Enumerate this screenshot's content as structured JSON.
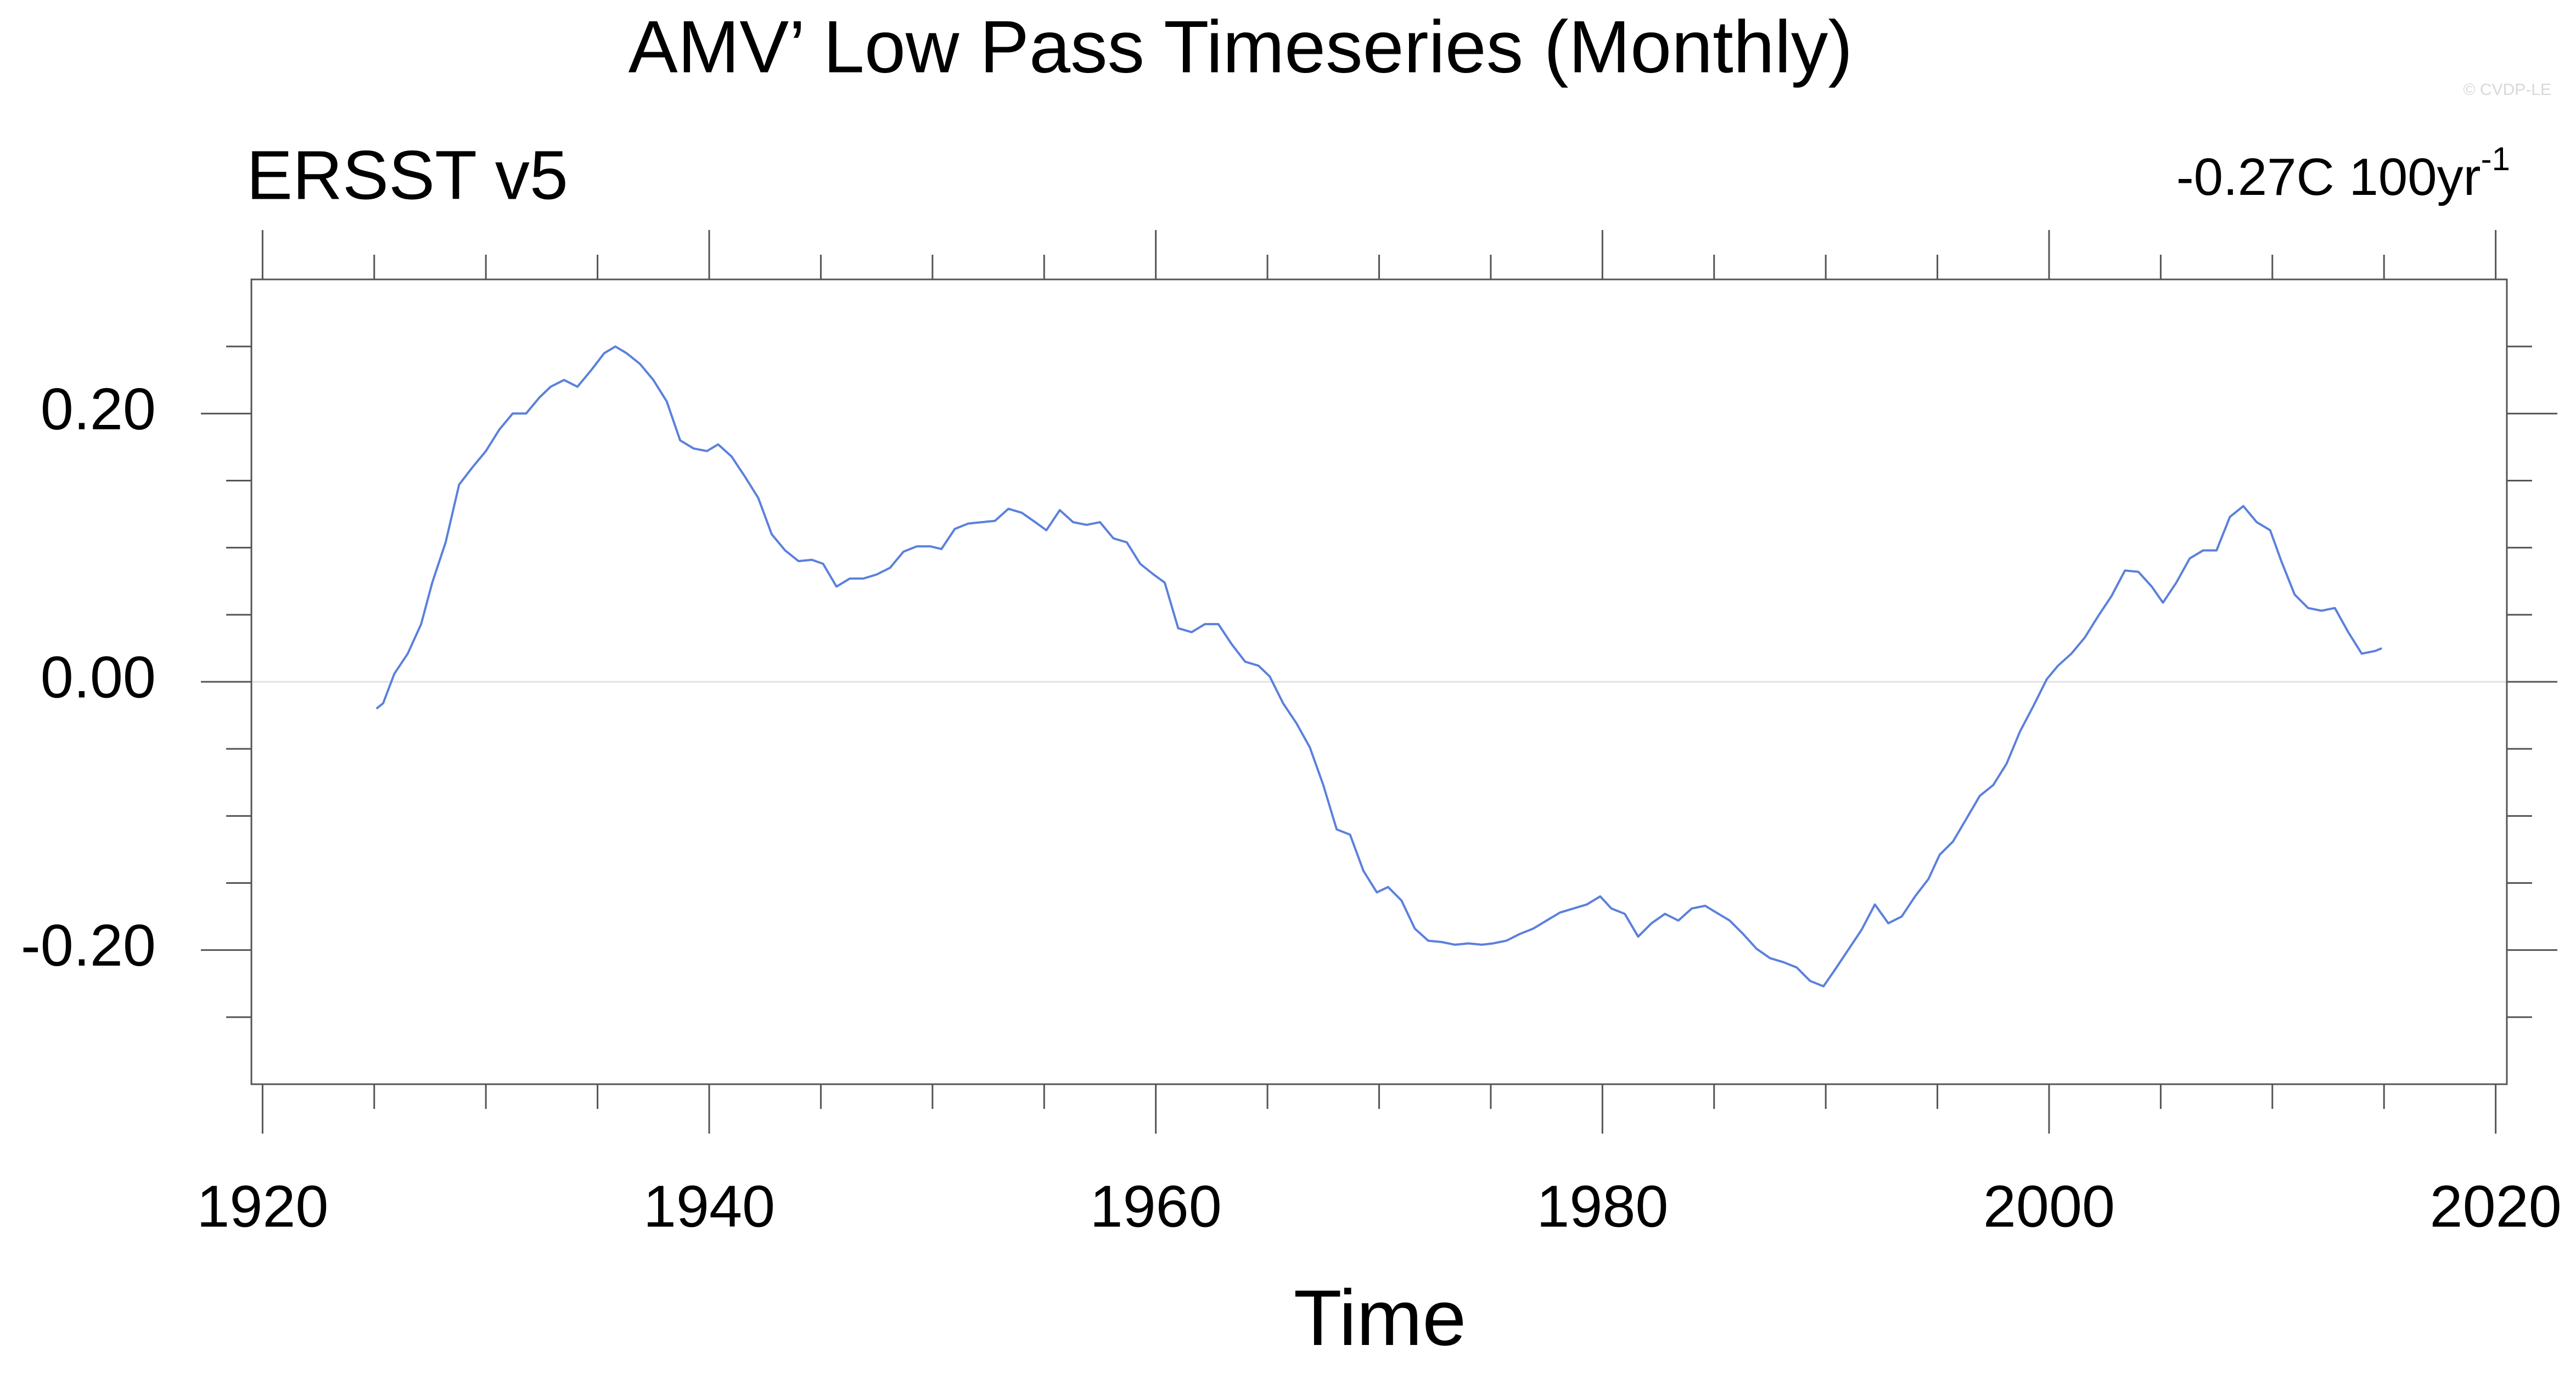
{
  "chart_data": {
    "type": "line",
    "title": "AMV’ Low Pass Timeseries (Monthly)",
    "subtitle": "ERSST v5",
    "trend": "-0.27C 100yr",
    "trend_superscript": "-1",
    "watermark": "© CVDP-LE",
    "x_label": "Time",
    "xlim": [
      1919.5,
      2020.5
    ],
    "xticks": [
      1920,
      1940,
      1960,
      1980,
      2000,
      2020
    ],
    "xminorticks": [
      1925,
      1930,
      1935,
      1945,
      1950,
      1955,
      1965,
      1970,
      1975,
      1985,
      1990,
      1995,
      2005,
      2010,
      2015
    ],
    "ylim": [
      -0.3,
      0.3
    ],
    "yticks": [
      {
        "value": 0.2,
        "label": "0.20"
      },
      {
        "value": 0,
        "label": "0.00"
      },
      {
        "value": -0.2,
        "label": "-0.20"
      }
    ],
    "yminorticks": [
      0.25,
      0.15,
      0.1,
      0.05,
      -0.05,
      -0.1,
      -0.15,
      -0.25
    ],
    "zero_line": true,
    "x": [
      1925.1,
      1925.4,
      1925.9,
      1926.5,
      1927.1,
      1927.6,
      1928.2,
      1928.8,
      1929.4,
      1930.0,
      1930.6,
      1931.2,
      1931.8,
      1932.4,
      1932.9,
      1933.5,
      1934.1,
      1934.7,
      1935.3,
      1935.8,
      1936.3,
      1936.9,
      1937.5,
      1938.1,
      1938.7,
      1939.3,
      1939.9,
      1940.4,
      1941.0,
      1941.6,
      1942.2,
      1942.8,
      1943.4,
      1944.0,
      1944.6,
      1945.1,
      1945.7,
      1946.3,
      1946.9,
      1947.5,
      1948.1,
      1948.7,
      1949.3,
      1949.9,
      1950.4,
      1951.0,
      1951.6,
      1952.2,
      1952.8,
      1953.4,
      1954.0,
      1954.6,
      1955.1,
      1955.7,
      1956.3,
      1956.9,
      1957.5,
      1958.1,
      1958.7,
      1959.3,
      1959.9,
      1960.4,
      1961.0,
      1961.6,
      1962.2,
      1962.8,
      1963.4,
      1964.0,
      1964.6,
      1965.1,
      1965.7,
      1966.3,
      1966.9,
      1967.5,
      1968.1,
      1968.7,
      1969.3,
      1969.9,
      1970.4,
      1971.0,
      1971.6,
      1972.2,
      1972.8,
      1973.4,
      1974.0,
      1974.6,
      1975.1,
      1975.7,
      1976.3,
      1976.9,
      1977.5,
      1978.1,
      1978.7,
      1979.3,
      1979.9,
      1980.4,
      1981.0,
      1981.6,
      1982.2,
      1982.8,
      1983.4,
      1984.0,
      1984.6,
      1985.1,
      1985.7,
      1986.3,
      1986.9,
      1987.5,
      1988.1,
      1988.7,
      1989.3,
      1989.9,
      1990.4,
      1991.0,
      1991.6,
      1992.2,
      1992.8,
      1993.4,
      1994.0,
      1994.6,
      1995.1,
      1995.7,
      1996.3,
      1996.9,
      1997.5,
      1998.1,
      1998.7,
      1999.3,
      1999.9,
      2000.4,
      2001.0,
      2001.6,
      2002.2,
      2002.8,
      2003.4,
      2004.0,
      2004.6,
      2005.1,
      2005.7,
      2006.3,
      2006.9,
      2007.5,
      2008.1,
      2008.7,
      2009.3,
      2009.9,
      2010.4,
      2011.0,
      2011.6,
      2012.2,
      2012.8,
      2013.4,
      2014.0,
      2014.6,
      2014.9
    ],
    "series": [
      {
        "color": "#5b80dc",
        "values": [
          -0.02,
          -0.016,
          0.006,
          0.021,
          0.043,
          0.074,
          0.104,
          0.147,
          0.16,
          0.172,
          0.188,
          0.2,
          0.2,
          0.212,
          0.22,
          0.225,
          0.22,
          0.232,
          0.245,
          0.25,
          0.245,
          0.237,
          0.225,
          0.209,
          0.18,
          0.174,
          0.172,
          0.177,
          0.168,
          0.153,
          0.137,
          0.11,
          0.098,
          0.09,
          0.091,
          0.088,
          0.071,
          0.077,
          0.077,
          0.08,
          0.085,
          0.097,
          0.101,
          0.101,
          0.099,
          0.114,
          0.118,
          0.119,
          0.12,
          0.129,
          0.126,
          0.119,
          0.113,
          0.128,
          0.119,
          0.117,
          0.119,
          0.107,
          0.104,
          0.088,
          0.08,
          0.074,
          0.04,
          0.037,
          0.043,
          0.043,
          0.028,
          0.015,
          0.012,
          0.004,
          -0.016,
          -0.031,
          -0.049,
          -0.077,
          -0.11,
          -0.114,
          -0.141,
          -0.157,
          -0.153,
          -0.163,
          -0.184,
          -0.193,
          -0.194,
          -0.196,
          -0.195,
          -0.196,
          -0.195,
          -0.193,
          -0.188,
          -0.184,
          -0.178,
          -0.172,
          -0.169,
          -0.166,
          -0.16,
          -0.169,
          -0.173,
          -0.19,
          -0.18,
          -0.173,
          -0.178,
          -0.169,
          -0.167,
          -0.172,
          -0.178,
          -0.188,
          -0.199,
          -0.206,
          -0.209,
          -0.213,
          -0.223,
          -0.227,
          -0.215,
          -0.2,
          -0.185,
          -0.166,
          -0.18,
          -0.175,
          -0.16,
          -0.147,
          -0.129,
          -0.119,
          -0.102,
          -0.085,
          -0.077,
          -0.061,
          -0.037,
          -0.018,
          0.002,
          0.012,
          0.021,
          0.033,
          0.049,
          0.064,
          0.083,
          0.082,
          0.071,
          0.059,
          0.074,
          0.092,
          0.098,
          0.098,
          0.123,
          0.131,
          0.119,
          0.113,
          0.09,
          0.065,
          0.055,
          0.053,
          0.055,
          0.037,
          0.021,
          0.023,
          0.025
        ]
      }
    ]
  }
}
